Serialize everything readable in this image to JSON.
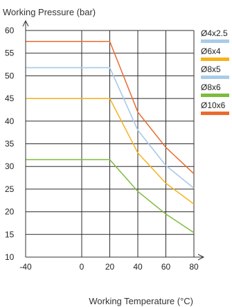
{
  "chart_data": {
    "type": "line",
    "title": "",
    "xlabel": "Working Temperature (°C)",
    "ylabel": "Working Pressure (bar)",
    "xlim": [
      -40,
      80
    ],
    "ylim": [
      10,
      60
    ],
    "x_ticks": [
      -40,
      0,
      20,
      40,
      60,
      80
    ],
    "y_ticks": [
      10,
      15,
      20,
      25,
      30,
      35,
      40,
      45,
      50,
      55,
      60
    ],
    "grid": true,
    "legend_position": "right",
    "series": [
      {
        "name": "Ø4x2.5",
        "color": "#a9cbe8",
        "x": [
          -40,
          20,
          40,
          60,
          80
        ],
        "y": [
          51.8,
          51.8,
          38,
          30.2,
          25.2
        ]
      },
      {
        "name": "Ø6x4",
        "color": "#f5b21c",
        "x": [
          -40,
          20,
          40,
          60,
          80
        ],
        "y": [
          45,
          45,
          33,
          26.3,
          21.7
        ]
      },
      {
        "name": "Ø8x5",
        "color": "#a9cbe8",
        "x": [
          -40,
          20,
          40,
          60,
          80
        ],
        "y": [
          51.8,
          51.8,
          38,
          30.2,
          25.2
        ]
      },
      {
        "name": "Ø8x6",
        "color": "#7dbb3c",
        "x": [
          -40,
          20,
          40,
          60,
          80
        ],
        "y": [
          31.5,
          31.5,
          24.5,
          19.5,
          15.4
        ]
      },
      {
        "name": "Ø10x6",
        "color": "#ea6b2d",
        "x": [
          -40,
          20,
          40,
          60,
          80
        ],
        "y": [
          57.6,
          57.6,
          42,
          34.2,
          28.4
        ]
      }
    ]
  }
}
